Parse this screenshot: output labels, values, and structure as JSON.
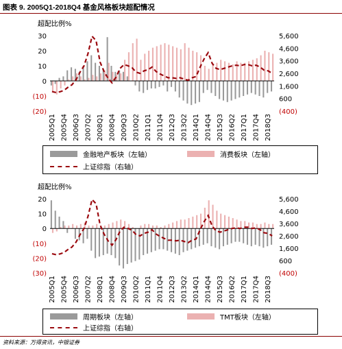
{
  "figure_title": "图表 9. 2005Q1-2018Q4 基金风格板块超配情况",
  "source_note": "资料来源：万得资讯，中银证券",
  "colors": {
    "gray_bar": "#9a9a9a",
    "pink_bar": "#ebb1b1",
    "red_line": "#9b0a0f",
    "right_axis": "#c00000",
    "accent": "#8a0000"
  },
  "x_labels": [
    "2005Q1",
    "2005Q4",
    "2006Q3",
    "2007Q2",
    "2008Q1",
    "2008Q4",
    "2009Q3",
    "2010Q2",
    "2011Q1",
    "2011Q4",
    "2012Q3",
    "2013Q2",
    "2014Q1",
    "2014Q4",
    "2015Q3",
    "2016Q2",
    "2017Q1",
    "2017Q4",
    "2018Q3"
  ],
  "chart_data": [
    {
      "type": "bar",
      "title": "",
      "ylabel": "超配比例%",
      "ylim": [
        -20,
        30
      ],
      "y_ticks": [
        "30",
        "20",
        "10",
        "0",
        "(10)",
        "(20)"
      ],
      "y2lim": [
        -400,
        5600
      ],
      "y2_ticks": [
        "5,600",
        "4,600",
        "3,600",
        "2,600",
        "1,600",
        "600",
        "(400)"
      ],
      "legend": {
        "bar1": "金融地产板块（左轴）",
        "bar2": "消费板块（左轴）",
        "line": "上证综指（右轴）"
      },
      "series": [
        {
          "name": "金融地产板块（左轴）",
          "type": "bar",
          "axis": "left",
          "values": [
            -3,
            -2,
            2,
            3,
            7,
            9,
            8,
            6,
            10,
            13,
            17,
            12,
            10,
            8,
            29,
            10,
            6,
            7,
            6,
            3,
            0,
            -3,
            -7,
            -8,
            -6,
            -5,
            -5,
            -4,
            -3,
            -7,
            -4,
            -7,
            -11,
            -13,
            -15,
            -16,
            -15,
            -14,
            -8,
            -6,
            -8,
            -10,
            -12,
            -13,
            -14,
            -13,
            -12,
            -11,
            -10,
            -9,
            -8,
            -9,
            -10,
            -11,
            -8,
            -7
          ]
        },
        {
          "name": "消费板块（左轴）",
          "type": "bar",
          "axis": "left",
          "values": [
            -7,
            -9,
            -5,
            -3,
            1,
            3,
            5,
            3,
            1,
            2,
            4,
            3,
            5,
            7,
            12,
            6,
            4,
            5,
            14,
            19,
            25,
            28,
            14,
            18,
            20,
            22,
            23,
            24,
            25,
            24,
            23,
            22,
            21,
            25,
            22,
            20,
            19,
            17,
            10,
            8,
            11,
            12,
            14,
            13,
            12,
            11,
            13,
            12,
            12,
            13,
            14,
            15,
            17,
            20,
            19,
            18
          ]
        },
        {
          "name": "上证综指（右轴）",
          "type": "line",
          "axis": "right",
          "values": [
            1150,
            1080,
            1140,
            1250,
            1500,
            1700,
            2100,
            2700,
            3200,
            4200,
            5550,
            5200,
            3500,
            2750,
            2200,
            1850,
            2300,
            3000,
            3300,
            3200,
            3050,
            2700,
            2600,
            2800,
            2900,
            3100,
            2750,
            2550,
            2400,
            2250,
            2250,
            2200,
            2250,
            2150,
            2050,
            2250,
            2350,
            3100,
            3750,
            4250,
            3400,
            3000,
            2900,
            3000,
            3100,
            3200,
            3250,
            3200,
            3300,
            3300,
            3200,
            3250,
            3100,
            2850,
            2800,
            2600
          ]
        }
      ]
    },
    {
      "type": "bar",
      "title": "",
      "ylabel": "超配比例%",
      "ylim": [
        -30,
        20
      ],
      "y_ticks": [
        "20",
        "10",
        "0",
        "(10)",
        "(20)",
        "(30)"
      ],
      "y2lim": [
        -400,
        5600
      ],
      "y2_ticks": [
        "5,600",
        "4,600",
        "3,600",
        "2,600",
        "1,600",
        "600",
        "(400)"
      ],
      "legend": {
        "bar1": "周期板块（左轴）",
        "bar2": "TMT板块（左轴）",
        "line": "上证综指（右轴）"
      },
      "series": [
        {
          "name": "周期板块（左轴）",
          "type": "bar",
          "axis": "left",
          "values": [
            19,
            12,
            8,
            5,
            -3,
            0,
            -7,
            -8,
            -10,
            -7,
            -15,
            -20,
            -19,
            -18,
            -17,
            -18,
            -20,
            -25,
            -27,
            -24,
            -23,
            -22,
            -21,
            -18,
            -17,
            -16,
            -15,
            -14,
            -14,
            -15,
            -16,
            -17,
            -18,
            -16,
            -15,
            -14,
            -13,
            -12,
            -11,
            -10,
            -12,
            -13,
            -14,
            -12,
            -11,
            -10,
            -9,
            -9,
            -10,
            -11,
            -12,
            -11,
            -12,
            -13,
            -12,
            -11
          ]
        },
        {
          "name": "TMT板块（左轴）",
          "type": "bar",
          "axis": "left",
          "values": [
            -3,
            -2,
            1,
            2,
            2,
            3,
            2,
            3,
            4,
            2,
            2,
            3,
            2,
            2,
            3,
            4,
            5,
            6,
            5,
            3,
            1,
            0,
            2,
            3,
            3,
            2,
            2,
            1,
            2,
            3,
            4,
            5,
            6,
            6,
            7,
            8,
            9,
            10,
            14,
            19,
            16,
            12,
            10,
            9,
            8,
            7,
            6,
            5,
            5,
            4,
            4,
            3,
            3,
            4,
            3,
            3
          ]
        },
        {
          "name": "上证综指（右轴）",
          "type": "line",
          "axis": "right",
          "values": [
            1150,
            1080,
            1140,
            1250,
            1500,
            1700,
            2100,
            2700,
            3200,
            4200,
            5550,
            5200,
            3500,
            2750,
            2200,
            1850,
            2300,
            3000,
            3300,
            3200,
            3050,
            2700,
            2600,
            2800,
            2900,
            3100,
            2750,
            2550,
            2400,
            2250,
            2250,
            2200,
            2250,
            2150,
            2050,
            2250,
            2350,
            3100,
            3750,
            4250,
            3400,
            3000,
            2900,
            3000,
            3100,
            3200,
            3250,
            3200,
            3300,
            3300,
            3200,
            3250,
            3100,
            2850,
            2800,
            2600
          ]
        }
      ]
    }
  ]
}
